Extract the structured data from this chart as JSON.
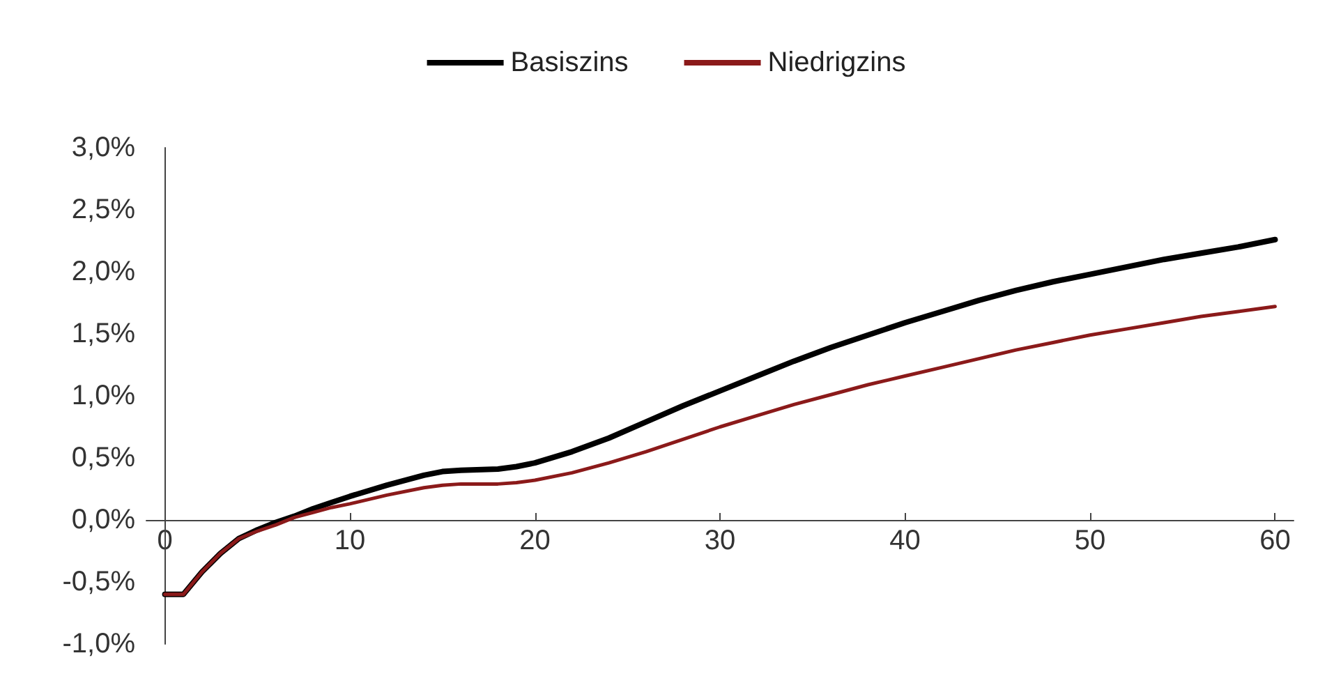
{
  "chart_data": {
    "type": "line",
    "x": [
      0,
      1,
      2,
      3,
      4,
      5,
      6,
      7,
      8,
      9,
      10,
      12,
      14,
      15,
      16,
      18,
      19,
      20,
      22,
      24,
      26,
      28,
      30,
      32,
      34,
      36,
      38,
      40,
      42,
      44,
      46,
      48,
      50,
      52,
      54,
      56,
      58,
      60
    ],
    "series": [
      {
        "name": "Basiszins",
        "color": "#000000",
        "values": [
          -0.6,
          -0.6,
          -0.42,
          -0.27,
          -0.15,
          -0.08,
          -0.02,
          0.03,
          0.09,
          0.14,
          0.19,
          0.28,
          0.36,
          0.39,
          0.4,
          0.41,
          0.43,
          0.46,
          0.55,
          0.66,
          0.79,
          0.92,
          1.04,
          1.16,
          1.28,
          1.39,
          1.49,
          1.59,
          1.68,
          1.77,
          1.85,
          1.92,
          1.98,
          2.04,
          2.1,
          2.15,
          2.2,
          2.26
        ]
      },
      {
        "name": "Niedrigzins",
        "color": "#8b1a1a",
        "values": [
          -0.6,
          -0.6,
          -0.42,
          -0.27,
          -0.15,
          -0.09,
          -0.04,
          0.02,
          0.06,
          0.1,
          0.13,
          0.2,
          0.26,
          0.28,
          0.29,
          0.29,
          0.3,
          0.32,
          0.38,
          0.46,
          0.55,
          0.65,
          0.75,
          0.84,
          0.93,
          1.01,
          1.09,
          1.16,
          1.23,
          1.3,
          1.37,
          1.43,
          1.49,
          1.54,
          1.59,
          1.64,
          1.68,
          1.72
        ]
      }
    ],
    "xlim": [
      -1,
      61
    ],
    "xticks": [
      0,
      10,
      20,
      30,
      40,
      50,
      60
    ],
    "ylim": [
      -1,
      3
    ],
    "yticks": [
      {
        "value": -1,
        "label": "-1,0%"
      },
      {
        "value": -0.5,
        "label": "-0,5%"
      },
      {
        "value": 0,
        "label": "0,0%"
      },
      {
        "value": 0.5,
        "label": "0,5%"
      },
      {
        "value": 1,
        "label": "1,0%"
      },
      {
        "value": 1.5,
        "label": "1,5%"
      },
      {
        "value": 2,
        "label": "2,0%"
      },
      {
        "value": 2.5,
        "label": "2,5%"
      },
      {
        "value": 3,
        "label": "3,0%"
      }
    ],
    "grid": false,
    "legend": "top",
    "marker": "none",
    "line_style": "solid"
  }
}
